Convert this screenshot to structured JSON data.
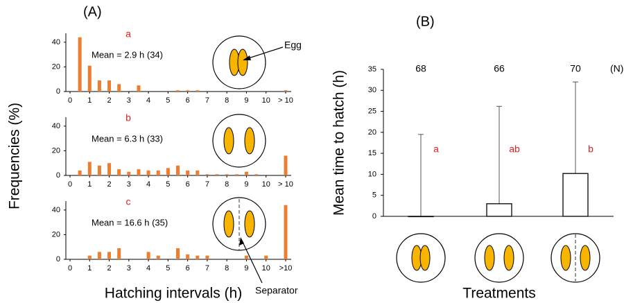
{
  "chart_data": [
    {
      "type": "bar",
      "panel_label": "(A)",
      "y_label": "Frequencies (%)",
      "x_label": "Hatching intervals (h)",
      "letter": "a",
      "annotation": "Mean = 2.9 h (34)",
      "callout": "Egg",
      "color": "#ed7d31",
      "x": [
        0.5,
        1,
        1.5,
        2,
        2.5,
        3,
        3.5,
        4,
        4.5,
        5,
        5.5,
        6,
        6.5,
        7,
        7.5,
        8,
        8.5,
        9,
        9.5,
        10,
        11
      ],
      "values": [
        44,
        21,
        9,
        9,
        6,
        0,
        5,
        0,
        0,
        0,
        1,
        1,
        1,
        0,
        0,
        0,
        0,
        0,
        0,
        0,
        1
      ],
      "xlim": [
        0,
        11
      ],
      "xticks": [
        0,
        1,
        2,
        3,
        4,
        5,
        6,
        7,
        8,
        9,
        10,
        {
          "value": 11,
          "label": "> 10"
        }
      ],
      "ylim": [
        0,
        45
      ],
      "yticks": [
        0,
        20,
        40
      ]
    },
    {
      "type": "bar",
      "letter": "b",
      "annotation": "Mean = 6.3 h (33)",
      "color": "#ed7d31",
      "x": [
        0.5,
        1,
        1.5,
        2,
        2.5,
        3,
        3.5,
        4,
        4.5,
        5,
        5.5,
        6,
        6.5,
        7,
        7.5,
        8,
        8.5,
        9,
        9.5,
        10,
        11
      ],
      "values": [
        4,
        11,
        8,
        10,
        5,
        3,
        5,
        4,
        4,
        6,
        8,
        4,
        4,
        1,
        1,
        1,
        1,
        3,
        1,
        0,
        16
      ],
      "xlim": [
        0,
        11
      ],
      "xticks": [
        0,
        1,
        2,
        3,
        4,
        5,
        6,
        7,
        8,
        9,
        10,
        {
          "value": 11,
          "label": "> 10"
        }
      ],
      "ylim": [
        0,
        45
      ],
      "yticks": [
        0,
        20,
        40
      ]
    },
    {
      "type": "bar",
      "letter": "c",
      "annotation": "Mean = 16.6 h (35)",
      "callout": "Separator",
      "color": "#ed7d31",
      "x": [
        0.5,
        1,
        1.5,
        2,
        2.5,
        3,
        3.5,
        4,
        4.5,
        5,
        5.5,
        6,
        6.5,
        7,
        7.5,
        8,
        8.5,
        9,
        9.5,
        10,
        11
      ],
      "values": [
        0,
        3,
        6,
        6,
        9,
        0,
        0,
        6,
        3,
        0,
        9,
        4,
        3,
        3,
        0,
        0,
        0,
        3,
        0,
        3,
        44
      ],
      "xlim": [
        0,
        11
      ],
      "xticks": [
        0,
        1,
        2,
        3,
        4,
        5,
        6,
        7,
        8,
        9,
        10,
        {
          "value": 11,
          "label": ">10"
        }
      ],
      "ylim": [
        0,
        45
      ],
      "yticks": [
        0,
        20,
        40
      ]
    },
    {
      "type": "errorbar",
      "panel_label": "(B)",
      "y_label": "Mean time to hatch (h)",
      "x_label": "Treatments",
      "categories": [
        null,
        null,
        null
      ],
      "values": [
        0,
        3,
        10.2
      ],
      "errors": [
        19.5,
        23.2,
        21.8
      ],
      "n": [
        68,
        66,
        70
      ],
      "n_label": "(N)",
      "letters": [
        "a",
        "ab",
        "b"
      ],
      "color": "#ffffff",
      "ylim": [
        0,
        35
      ],
      "yticks": [
        0,
        5,
        10,
        15,
        20,
        25,
        30,
        35
      ]
    }
  ]
}
